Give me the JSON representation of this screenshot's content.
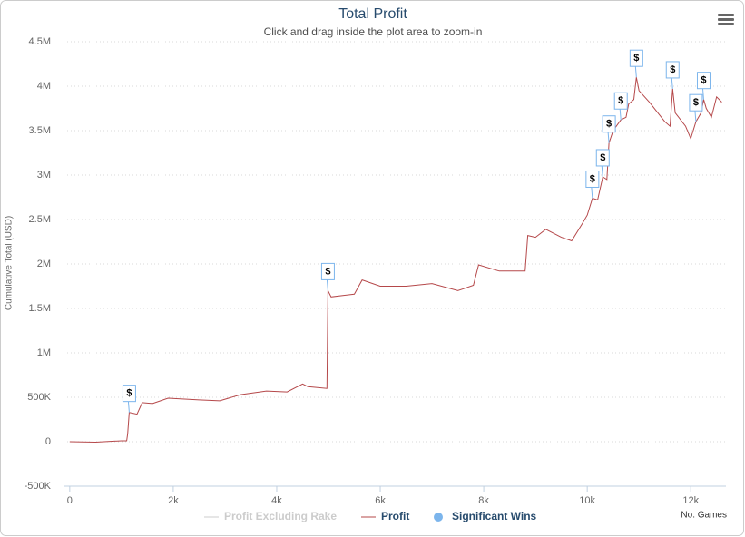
{
  "chart_data": {
    "type": "line",
    "title": "Total Profit",
    "subtitle": "Click and drag inside the plot area to zoom-in",
    "y_label": "Cumulative Total (USD)",
    "x_label": "No. Games",
    "xlim": [
      -120,
      12680
    ],
    "ylim": [
      -500000,
      4500000
    ],
    "xticks": [
      0,
      {
        "value": 2000,
        "label": "2k"
      },
      {
        "value": 4000,
        "label": "4k"
      },
      {
        "value": 6000,
        "label": "6k"
      },
      {
        "value": 8000,
        "label": "8k"
      },
      {
        "value": 10000,
        "label": "10k"
      },
      {
        "value": 12000,
        "label": "12k"
      }
    ],
    "yticks": [
      {
        "value": -500000,
        "label": "-500K"
      },
      0,
      {
        "value": 500000,
        "label": "500K"
      },
      {
        "value": 1000000,
        "label": "1M"
      },
      {
        "value": 1500000,
        "label": "1.5M"
      },
      {
        "value": 2000000,
        "label": "2M"
      },
      {
        "value": 2500000,
        "label": "2.5M"
      },
      {
        "value": 3000000,
        "label": "3M"
      },
      {
        "value": 3500000,
        "label": "3.5M"
      },
      {
        "value": 4000000,
        "label": "4M"
      },
      {
        "value": 4500000,
        "label": "4.5M"
      }
    ],
    "grid": true,
    "series": [
      {
        "name": "Profit Excluding Rake",
        "color": "#cccccc",
        "visible": false
      },
      {
        "name": "Profit",
        "color": "#b5484a",
        "x": [
          0,
          500,
          1000,
          1100,
          1120,
          1150,
          1300,
          1400,
          1600,
          1900,
          2500,
          2900,
          3300,
          3800,
          4200,
          4500,
          4600,
          4970,
          4990,
          5050,
          5500,
          5650,
          6000,
          6500,
          7000,
          7500,
          7800,
          7900,
          8300,
          8800,
          8850,
          9000,
          9200,
          9500,
          9700,
          9900,
          10000,
          10100,
          10200,
          10300,
          10380,
          10420,
          10500,
          10650,
          10750,
          10800,
          10900,
          10950,
          11000,
          11200,
          11500,
          11600,
          11650,
          11700,
          11900,
          12000,
          12100,
          12200,
          12250,
          12300,
          12400,
          12500,
          12600
        ],
        "values": [
          0,
          -5000,
          10000,
          10000,
          90000,
          330000,
          310000,
          440000,
          430000,
          490000,
          470000,
          460000,
          530000,
          570000,
          560000,
          650000,
          620000,
          600000,
          1700000,
          1630000,
          1660000,
          1820000,
          1750000,
          1750000,
          1780000,
          1700000,
          1760000,
          1990000,
          1920000,
          1920000,
          2320000,
          2300000,
          2390000,
          2300000,
          2260000,
          2450000,
          2550000,
          2740000,
          2720000,
          2980000,
          2950000,
          3360000,
          3500000,
          3620000,
          3650000,
          3800000,
          3850000,
          4100000,
          3950000,
          3820000,
          3600000,
          3550000,
          3970000,
          3700000,
          3550000,
          3410000,
          3600000,
          3700000,
          3850000,
          3750000,
          3650000,
          3880000,
          3820000
        ]
      },
      {
        "name": "Significant Wins",
        "color": "#7cb5ec",
        "title": "$",
        "x": [
          1150,
          4990,
          10100,
          10300,
          10420,
          10650,
          10950,
          11650,
          12100,
          12250
        ],
        "values": [
          330000,
          1700000,
          2740000,
          2980000,
          3360000,
          3620000,
          4100000,
          3970000,
          3600000,
          3850000
        ]
      }
    ]
  }
}
